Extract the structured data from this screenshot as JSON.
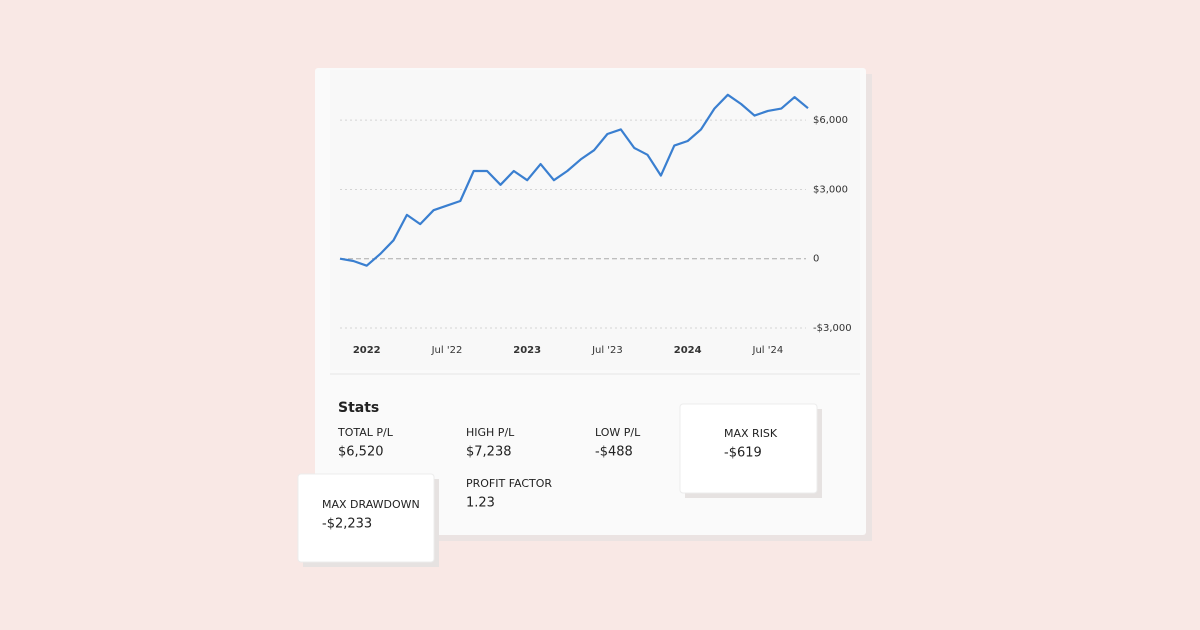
{
  "chart_data": {
    "type": "line",
    "x": [
      "2021-11",
      "2021-12",
      "2022-01",
      "2022-02",
      "2022-03",
      "2022-04",
      "2022-05",
      "2022-06",
      "2022-07",
      "2022-08",
      "2022-09",
      "2022-10",
      "2022-11",
      "2022-12",
      "2023-01",
      "2023-02",
      "2023-03",
      "2023-04",
      "2023-05",
      "2023-06",
      "2023-07",
      "2023-08",
      "2023-09",
      "2023-10",
      "2023-11",
      "2023-12",
      "2024-01",
      "2024-02",
      "2024-03",
      "2024-04",
      "2024-05",
      "2024-06",
      "2024-07",
      "2024-08",
      "2024-09",
      "2024-10"
    ],
    "series": [
      {
        "color": "#3a7fd0",
        "values": [
          0,
          -100,
          -300,
          200,
          800,
          1900,
          1500,
          2100,
          2300,
          2500,
          3800,
          3800,
          3200,
          3800,
          3400,
          4100,
          3400,
          3800,
          4300,
          4700,
          5400,
          5600,
          4800,
          4500,
          3600,
          4900,
          5100,
          5600,
          6500,
          7100,
          6700,
          6200,
          6400,
          6500,
          7000,
          6520
        ]
      }
    ],
    "xlim": [
      "2021-11",
      "2024-10"
    ],
    "xticks": [
      {
        "value": "2022-01",
        "label": "2022"
      },
      {
        "value": "2022-07",
        "label": "Jul '22"
      },
      {
        "value": "2023-01",
        "label": "2023"
      },
      {
        "value": "2023-07",
        "label": "Jul '23"
      },
      {
        "value": "2024-01",
        "label": "2024"
      },
      {
        "value": "2024-07",
        "label": "Jul '24"
      }
    ],
    "ylim": [
      -3000,
      8000
    ],
    "yticks": [
      {
        "value": -3000,
        "label": "-$3,000"
      },
      0,
      {
        "value": 3000,
        "label": "$3,000"
      },
      {
        "value": 6000,
        "label": "$6,000"
      }
    ],
    "grid": true
  },
  "stats": {
    "title": "Stats",
    "items": [
      {
        "label": "TOTAL P/L",
        "value": "$6,520",
        "color": "#1e6b2a"
      },
      {
        "label": "HIGH P/L",
        "value": "$7,238",
        "color": "#1e6b2a"
      },
      {
        "label": "LOW P/L",
        "value": "-$488",
        "color": "#8b1c24"
      },
      {
        "label": "MAX RISK",
        "value": "-$619",
        "color": "#8b1c24"
      },
      {
        "label": "MAX DRAWDOWN",
        "value": "-$2,233",
        "color": "#8b1c24"
      },
      {
        "label": "PROFIT FACTOR",
        "value": "1.23",
        "color": "#222222"
      }
    ]
  }
}
